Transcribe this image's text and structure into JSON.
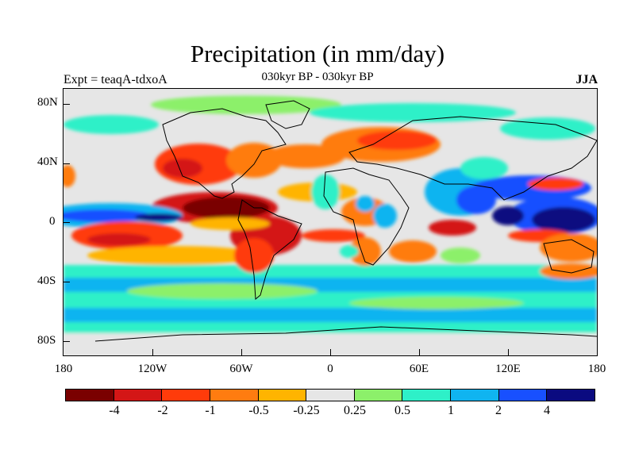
{
  "header": {
    "title": "Precipitation (in mm/day)",
    "left_subtitle": "Expt = teaqA-tdxoA",
    "center_subtitle": "030kyr BP - 030kyr BP",
    "right_subtitle": "JJA"
  },
  "axes": {
    "y_labels": [
      "80N",
      "40N",
      "0",
      "40S",
      "80S"
    ],
    "x_labels": [
      "180",
      "120W",
      "60W",
      "0",
      "60E",
      "120E",
      "180"
    ]
  },
  "colorbar": {
    "colors": [
      "#7a0000",
      "#d41616",
      "#ff3b0a",
      "#ff7c10",
      "#ffb400",
      "#e6e6e6",
      "#8cf06a",
      "#2ef0c8",
      "#10b4f0",
      "#1850ff",
      "#0a0a80"
    ],
    "labels": [
      "-4",
      "-2",
      "-1",
      "-0.5",
      "-0.25",
      "0.25",
      "0.5",
      "1",
      "2",
      "4"
    ]
  }
}
